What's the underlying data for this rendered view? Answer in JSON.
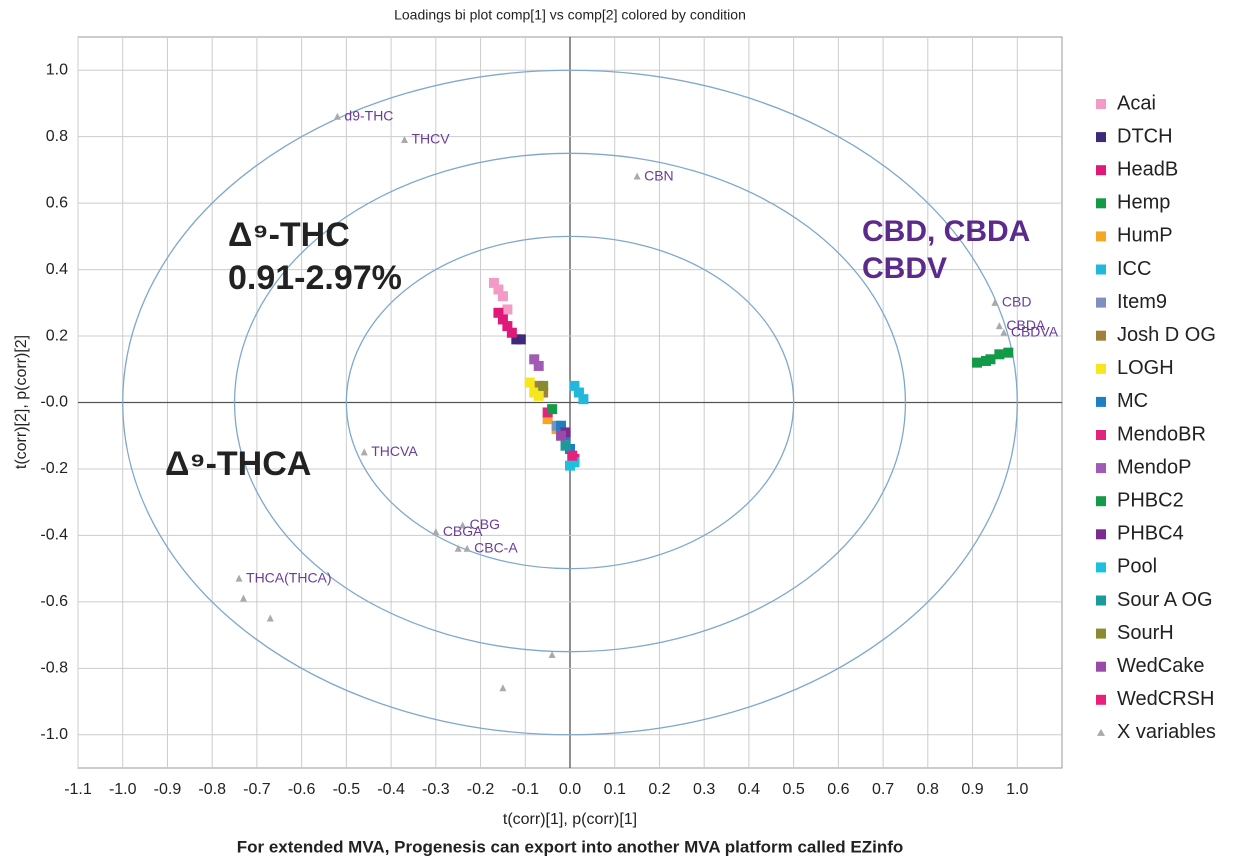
{
  "chart_data": {
    "type": "scatter",
    "title": "Loadings bi plot comp[1] vs comp[2] colored by condition",
    "x_label": "t(corr)[1], p(corr)[1]",
    "y_label": "t(corr)[2], p(corr)[2]",
    "footer": "For extended MVA, Progenesis can export into another MVA platform called EZinfo",
    "annotations": [
      "Δ⁹-THC",
      "0.91-2.97%",
      "Δ⁹-THCA",
      "CBD, CBDA",
      "CBDV"
    ],
    "xlim": [
      -1.1,
      1.1
    ],
    "ylim": [
      -1.1,
      1.1
    ],
    "xticks": [
      -1.1,
      {
        "value": -1,
        "label": "-1.0"
      },
      -0.9,
      -0.8,
      -0.7,
      -0.6,
      -0.5,
      -0.4,
      -0.3,
      -0.2,
      -0.1,
      {
        "value": 0,
        "label": "0.0"
      },
      0.1,
      0.2,
      0.3,
      0.4,
      0.5,
      0.6,
      0.7,
      0.8,
      0.9,
      {
        "value": 1,
        "label": "1.0"
      }
    ],
    "yticks": [
      {
        "value": -1,
        "label": "-1.0"
      },
      -0.8,
      -0.6,
      -0.4,
      -0.2,
      {
        "value": 0,
        "label": "-0.0"
      },
      0.2,
      0.4,
      0.6,
      0.8,
      {
        "value": 1,
        "label": "1.0"
      }
    ],
    "grid": true,
    "ellipses": [
      0.5,
      0.75,
      1
    ],
    "series": [
      {
        "name": "Acai",
        "color": "#f39ac7",
        "marker": "square",
        "x": [
          -0.17,
          -0.16,
          -0.15,
          -0.14
        ],
        "y": [
          0.36,
          0.34,
          0.32,
          0.28
        ]
      },
      {
        "name": "DTCH",
        "color": "#3d2a7a",
        "marker": "square",
        "x": [
          -0.12,
          -0.11
        ],
        "y": [
          0.19,
          0.19
        ]
      },
      {
        "name": "HeadB",
        "color": "#e0187a",
        "marker": "square",
        "x": [
          -0.16,
          -0.15,
          -0.14,
          -0.13
        ],
        "y": [
          0.27,
          0.25,
          0.23,
          0.21
        ]
      },
      {
        "name": "Hemp",
        "color": "#129a48",
        "marker": "square",
        "x": [
          0.91,
          0.93,
          0.94,
          0.96,
          0.98
        ],
        "y": [
          0.12,
          0.125,
          0.13,
          0.145,
          0.15
        ]
      },
      {
        "name": "HumP",
        "color": "#f5a623",
        "marker": "square",
        "x": [
          -0.05,
          -0.03
        ],
        "y": [
          -0.05,
          -0.08
        ]
      },
      {
        "name": "ICC",
        "color": "#22b8dc",
        "marker": "square",
        "x": [
          0.01,
          0.02,
          0.03
        ],
        "y": [
          0.05,
          0.03,
          0.01
        ]
      },
      {
        "name": "Item9",
        "color": "#7f8fbf",
        "marker": "square",
        "x": [
          -0.03
        ],
        "y": [
          -0.07
        ]
      },
      {
        "name": "Josh D OG",
        "color": "#a0803a",
        "marker": "square",
        "x": [
          -0.07,
          -0.06
        ],
        "y": [
          0.05,
          0.03
        ]
      },
      {
        "name": "LOGH",
        "color": "#f5e61e",
        "marker": "square",
        "x": [
          -0.09,
          -0.08,
          -0.07
        ],
        "y": [
          0.06,
          0.03,
          0.02
        ]
      },
      {
        "name": "MC",
        "color": "#1e7fc2",
        "marker": "square",
        "x": [
          -0.02,
          -0.01,
          0
        ],
        "y": [
          -0.07,
          -0.1,
          -0.14
        ]
      },
      {
        "name": "MendoBR",
        "color": "#e3247f",
        "marker": "square",
        "x": [
          -0.05,
          0.01
        ],
        "y": [
          -0.03,
          -0.17
        ]
      },
      {
        "name": "MendoP",
        "color": "#a05bb4",
        "marker": "square",
        "x": [
          -0.08,
          -0.07
        ],
        "y": [
          0.13,
          0.11
        ]
      },
      {
        "name": "PHBC2",
        "color": "#149a48",
        "marker": "square",
        "x": [
          -0.04
        ],
        "y": [
          -0.02
        ]
      },
      {
        "name": "PHBC4",
        "color": "#7a2a90",
        "marker": "square",
        "x": [
          -0.01
        ],
        "y": [
          -0.09
        ]
      },
      {
        "name": "Pool",
        "color": "#1ec0e0",
        "marker": "square",
        "x": [
          0.01,
          0
        ],
        "y": [
          -0.18,
          -0.19
        ]
      },
      {
        "name": "Sour A OG",
        "color": "#1a9a9a",
        "marker": "square",
        "x": [
          -0.01
        ],
        "y": [
          -0.13
        ]
      },
      {
        "name": "SourH",
        "color": "#8a8a30",
        "marker": "square",
        "x": [
          -0.06
        ],
        "y": [
          0.05
        ]
      },
      {
        "name": "WedCake",
        "color": "#9a4aa8",
        "marker": "square",
        "x": [
          -0.02
        ],
        "y": [
          -0.1
        ]
      },
      {
        "name": "WedCRSH",
        "color": "#e8207a",
        "marker": "square",
        "x": [
          0.005
        ],
        "y": [
          -0.16
        ]
      },
      {
        "name": "X variables",
        "color": "#aaaaaa",
        "marker": "triangle",
        "x": [
          -0.52,
          -0.37,
          0.15,
          0.95,
          0.96,
          0.97,
          -0.46,
          -0.24,
          -0.3,
          -0.23,
          -0.74,
          -0.73,
          -0.67,
          -0.04,
          -0.15,
          -0.25
        ],
        "y": [
          0.86,
          0.79,
          0.68,
          0.3,
          0.23,
          0.21,
          -0.15,
          -0.37,
          -0.39,
          -0.44,
          -0.53,
          -0.59,
          -0.65,
          -0.76,
          -0.86,
          -0.44
        ],
        "labels": [
          "d9-THC",
          "THCV",
          "CBN",
          "CBD",
          "CBDA",
          "CBDVA",
          "THCVA",
          "CBG",
          "CBGA",
          "CBC-A",
          "THCA(THCA)",
          null,
          null,
          null,
          null,
          null
        ]
      }
    ]
  }
}
